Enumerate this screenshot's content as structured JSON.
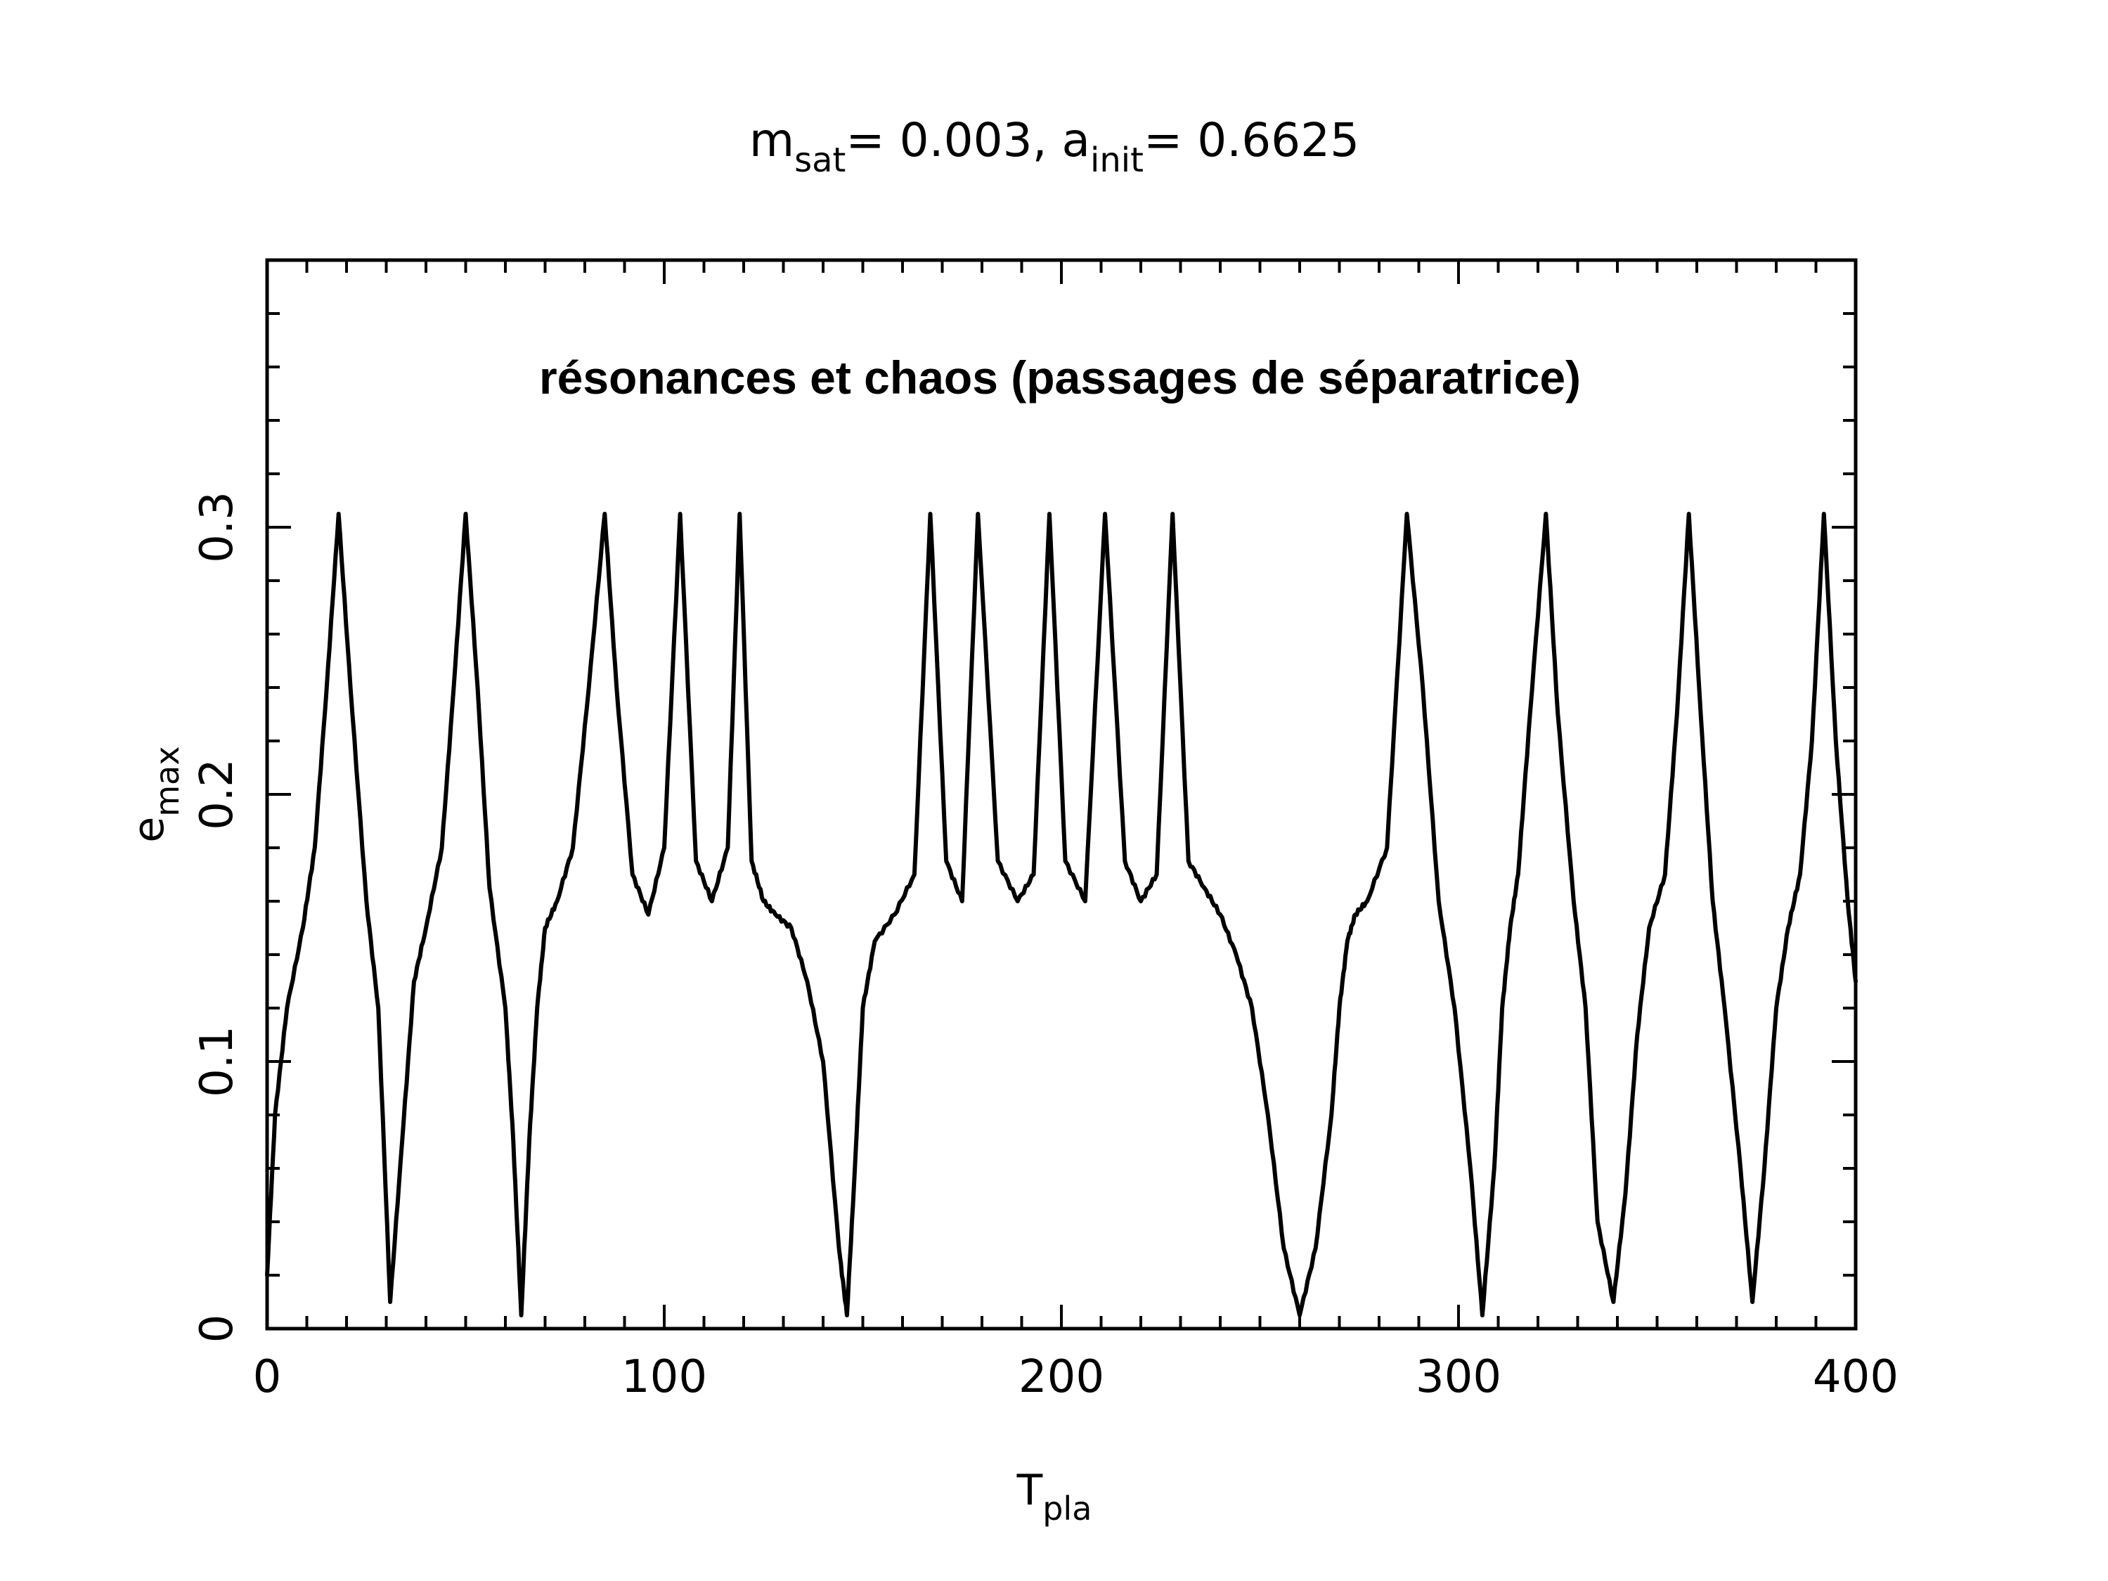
{
  "chart_data": {
    "type": "line",
    "title": {
      "parts": [
        {
          "text": "m",
          "sub": false
        },
        {
          "text": "sat",
          "sub": true
        },
        {
          "text": "= 0.003, a",
          "sub": false
        },
        {
          "text": "init",
          "sub": true
        },
        {
          "text": "= 0.6625",
          "sub": false
        }
      ]
    },
    "annotation": "résonances et chaos (passages de séparatrice)",
    "xlabel": {
      "main": "T",
      "sub": "pla"
    },
    "ylabel": {
      "main": "e",
      "sub": "max"
    },
    "xlim": [
      0,
      400
    ],
    "ylim": [
      0,
      0.4
    ],
    "x_ticks": [
      0,
      100,
      200,
      300,
      400
    ],
    "x_tick_labels": [
      "0",
      "100",
      "200",
      "300",
      "400"
    ],
    "y_ticks": [
      0,
      0.1,
      0.2,
      0.3
    ],
    "y_tick_labels": [
      "0",
      "0.1",
      "0.2",
      "0.3"
    ],
    "grid": false,
    "line_color": "#000000",
    "series": [
      {
        "x": [
          0,
          2,
          5,
          9,
          12,
          15,
          18,
          21,
          25,
          28,
          31,
          34,
          37,
          40,
          44,
          47,
          50,
          53,
          56,
          60,
          62,
          64,
          66,
          68,
          70,
          73,
          77,
          81,
          85,
          88,
          92,
          96,
          100,
          104,
          108,
          112,
          116,
          119,
          122,
          125,
          128,
          132,
          136,
          140,
          144,
          146,
          148,
          150,
          153,
          158,
          163,
          167,
          171,
          175,
          179,
          184,
          189,
          193,
          197,
          201,
          206,
          211,
          216,
          220,
          224,
          228,
          232,
          236,
          240,
          244,
          248,
          252,
          256,
          260,
          264,
          268,
          270,
          272,
          274,
          277,
          282,
          287,
          291,
          295,
          299,
          303,
          306,
          309,
          311,
          313,
          315,
          318,
          322,
          325,
          329,
          332,
          335,
          339,
          342,
          345,
          348,
          352,
          355,
          358,
          361,
          364,
          367,
          371,
          374,
          377,
          380,
          383,
          386,
          389,
          392,
          395,
          398,
          400
        ],
        "y": [
          0.02,
          0.08,
          0.12,
          0.15,
          0.18,
          0.24,
          0.305,
          0.24,
          0.16,
          0.12,
          0.01,
          0.07,
          0.13,
          0.15,
          0.18,
          0.24,
          0.305,
          0.24,
          0.165,
          0.12,
          0.07,
          0.005,
          0.07,
          0.12,
          0.15,
          0.16,
          0.18,
          0.24,
          0.305,
          0.24,
          0.17,
          0.155,
          0.18,
          0.305,
          0.175,
          0.16,
          0.18,
          0.305,
          0.175,
          0.16,
          0.155,
          0.15,
          0.13,
          0.1,
          0.03,
          0.005,
          0.06,
          0.12,
          0.145,
          0.155,
          0.17,
          0.305,
          0.175,
          0.16,
          0.305,
          0.175,
          0.16,
          0.17,
          0.305,
          0.175,
          0.16,
          0.305,
          0.175,
          0.16,
          0.17,
          0.305,
          0.175,
          0.165,
          0.155,
          0.14,
          0.12,
          0.08,
          0.03,
          0.005,
          0.03,
          0.08,
          0.12,
          0.145,
          0.155,
          0.16,
          0.18,
          0.305,
          0.24,
          0.16,
          0.12,
          0.06,
          0.005,
          0.06,
          0.12,
          0.15,
          0.17,
          0.23,
          0.305,
          0.23,
          0.16,
          0.12,
          0.04,
          0.01,
          0.05,
          0.11,
          0.15,
          0.17,
          0.23,
          0.305,
          0.23,
          0.16,
          0.12,
          0.06,
          0.01,
          0.06,
          0.12,
          0.15,
          0.17,
          0.22,
          0.305,
          0.22,
          0.16,
          0.13
        ]
      }
    ]
  }
}
